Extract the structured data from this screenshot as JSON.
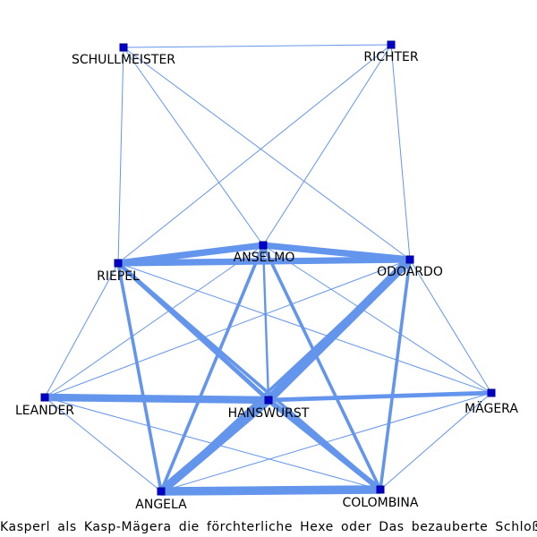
{
  "caption": "Kasperl als Kasp-Mägera die förchterliche Hexe oder Das bezauberte Schloß des Herrn von Einhorn",
  "colors": {
    "edge": "#6495ed",
    "node_fill": "#0000cd",
    "node_stroke": "#00008b",
    "label": "#000000"
  },
  "nodes": [
    {
      "id": "SCHULLMEISTER",
      "label": "SCHULLMEISTER"
    },
    {
      "id": "RICHTER",
      "label": "RICHTER"
    },
    {
      "id": "ANSELMO",
      "label": "ANSELMO"
    },
    {
      "id": "RIEPEL",
      "label": "RIEPEL"
    },
    {
      "id": "ODOARDO",
      "label": "ODOARDO"
    },
    {
      "id": "LEANDER",
      "label": "LEANDER"
    },
    {
      "id": "HANSWURST",
      "label": "HANSWURST"
    },
    {
      "id": "MAEGERA",
      "label": "MÄGERA"
    },
    {
      "id": "ANGELA",
      "label": "ANGELA"
    },
    {
      "id": "COLOMBINA",
      "label": "COLOMBINA"
    }
  ],
  "edges": [
    {
      "source": "SCHULLMEISTER",
      "target": "RICHTER",
      "weight": 1
    },
    {
      "source": "SCHULLMEISTER",
      "target": "RIEPEL",
      "weight": 1
    },
    {
      "source": "SCHULLMEISTER",
      "target": "ANSELMO",
      "weight": 1
    },
    {
      "source": "SCHULLMEISTER",
      "target": "ODOARDO",
      "weight": 1
    },
    {
      "source": "RICHTER",
      "target": "RIEPEL",
      "weight": 1
    },
    {
      "source": "RICHTER",
      "target": "ANSELMO",
      "weight": 1
    },
    {
      "source": "RICHTER",
      "target": "ODOARDO",
      "weight": 1
    },
    {
      "source": "RIEPEL",
      "target": "ANSELMO",
      "weight": 6
    },
    {
      "source": "RIEPEL",
      "target": "ODOARDO",
      "weight": 6
    },
    {
      "source": "ANSELMO",
      "target": "ODOARDO",
      "weight": 6
    },
    {
      "source": "RIEPEL",
      "target": "LEANDER",
      "weight": 1
    },
    {
      "source": "RIEPEL",
      "target": "HANSWURST",
      "weight": 4
    },
    {
      "source": "RIEPEL",
      "target": "MAEGERA",
      "weight": 1
    },
    {
      "source": "RIEPEL",
      "target": "ANGELA",
      "weight": 3
    },
    {
      "source": "RIEPEL",
      "target": "COLOMBINA",
      "weight": 3
    },
    {
      "source": "ANSELMO",
      "target": "LEANDER",
      "weight": 1
    },
    {
      "source": "ANSELMO",
      "target": "HANSWURST",
      "weight": 2
    },
    {
      "source": "ANSELMO",
      "target": "MAEGERA",
      "weight": 1
    },
    {
      "source": "ANSELMO",
      "target": "ANGELA",
      "weight": 3
    },
    {
      "source": "ANSELMO",
      "target": "COLOMBINA",
      "weight": 3
    },
    {
      "source": "ODOARDO",
      "target": "LEANDER",
      "weight": 1
    },
    {
      "source": "ODOARDO",
      "target": "HANSWURST",
      "weight": 8
    },
    {
      "source": "ODOARDO",
      "target": "MAEGERA",
      "weight": 1
    },
    {
      "source": "ODOARDO",
      "target": "ANGELA",
      "weight": 3
    },
    {
      "source": "ODOARDO",
      "target": "COLOMBINA",
      "weight": 3
    },
    {
      "source": "LEANDER",
      "target": "HANSWURST",
      "weight": 7
    },
    {
      "source": "LEANDER",
      "target": "ANGELA",
      "weight": 1
    },
    {
      "source": "LEANDER",
      "target": "COLOMBINA",
      "weight": 1
    },
    {
      "source": "HANSWURST",
      "target": "MAEGERA",
      "weight": 4
    },
    {
      "source": "HANSWURST",
      "target": "ANGELA",
      "weight": 8
    },
    {
      "source": "HANSWURST",
      "target": "COLOMBINA",
      "weight": 5
    },
    {
      "source": "MAEGERA",
      "target": "ANGELA",
      "weight": 1
    },
    {
      "source": "MAEGERA",
      "target": "COLOMBINA",
      "weight": 1
    },
    {
      "source": "ANGELA",
      "target": "COLOMBINA",
      "weight": 8
    }
  ]
}
